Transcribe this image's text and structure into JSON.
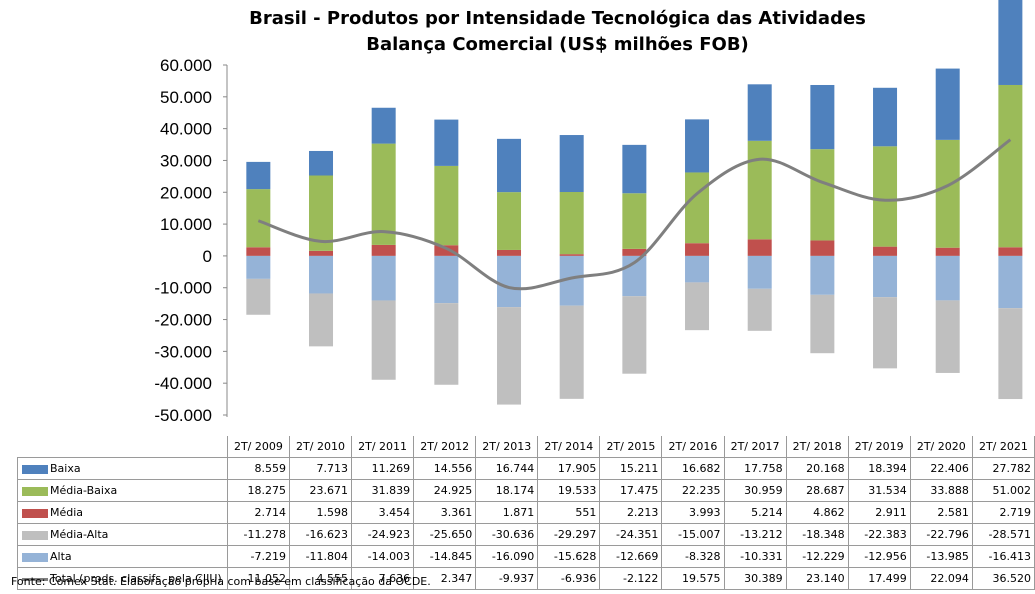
{
  "chart_data": {
    "type": "bar",
    "title": "Brasil - Produtos por Intensidade Tecnológica das Atividades",
    "subtitle": "Balança Comercial (US$ milhões FOB)",
    "categories": [
      "2T/ 2009",
      "2T/ 2010",
      "2T/ 2011",
      "2T/ 2012",
      "2T/ 2013",
      "2T/ 2014",
      "2T/ 2015",
      "2T/ 2016",
      "2T/ 2017",
      "2T/ 2018",
      "2T/ 2019",
      "2T/ 2020",
      "2T/ 2021"
    ],
    "ylim": [
      -50000,
      60000
    ],
    "yticks": [
      "60.000",
      "50.000",
      "40.000",
      "30.000",
      "20.000",
      "10.000",
      "0",
      "-10.000",
      "-20.000",
      "-30.000",
      "-40.000",
      "-50.000"
    ],
    "series": [
      {
        "name": "Baixa",
        "kind": "bar",
        "color": "#4f81bd",
        "values": [
          8559,
          7713,
          11269,
          14556,
          16744,
          17905,
          15211,
          16682,
          17758,
          20168,
          18394,
          22406,
          27782
        ],
        "labels": [
          "8.559",
          "7.713",
          "11.269",
          "14.556",
          "16.744",
          "17.905",
          "15.211",
          "16.682",
          "17.758",
          "20.168",
          "18.394",
          "22.406",
          "27.782"
        ]
      },
      {
        "name": "Média-Baixa",
        "kind": "bar",
        "color": "#9bbb59",
        "values": [
          18275,
          23671,
          31839,
          24925,
          18174,
          19533,
          17475,
          22235,
          30959,
          28687,
          31534,
          33888,
          51002
        ],
        "labels": [
          "18.275",
          "23.671",
          "31.839",
          "24.925",
          "18.174",
          "19.533",
          "17.475",
          "22.235",
          "30.959",
          "28.687",
          "31.534",
          "33.888",
          "51.002"
        ]
      },
      {
        "name": "Média",
        "kind": "bar",
        "color": "#c0504d",
        "values": [
          2714,
          1598,
          3454,
          3361,
          1871,
          551,
          2213,
          3993,
          5214,
          4862,
          2911,
          2581,
          2719
        ],
        "labels": [
          "2.714",
          "1.598",
          "3.454",
          "3.361",
          "1.871",
          "551",
          "2.213",
          "3.993",
          "5.214",
          "4.862",
          "2.911",
          "2.581",
          "2.719"
        ]
      },
      {
        "name": "Média-Alta",
        "kind": "bar",
        "color": "#bfbfbf",
        "values": [
          -11278,
          -16623,
          -24923,
          -25650,
          -30636,
          -29297,
          -24351,
          -15007,
          -13212,
          -18348,
          -22383,
          -22796,
          -28571
        ],
        "labels": [
          "-11.278",
          "-16.623",
          "-24.923",
          "-25.650",
          "-30.636",
          "-29.297",
          "-24.351",
          "-15.007",
          "-13.212",
          "-18.348",
          "-22.383",
          "-22.796",
          "-28.571"
        ]
      },
      {
        "name": "Alta",
        "kind": "bar",
        "color": "#95b3d7",
        "values": [
          -7219,
          -11804,
          -14003,
          -14845,
          -16090,
          -15628,
          -12669,
          -8328,
          -10331,
          -12229,
          -12956,
          -13985,
          -16413
        ],
        "labels": [
          "-7.219",
          "-11.804",
          "-14.003",
          "-14.845",
          "-16.090",
          "-15.628",
          "-12.669",
          "-8.328",
          "-10.331",
          "-12.229",
          "-12.956",
          "-13.985",
          "-16.413"
        ]
      },
      {
        "name": "Total (prods. classifs. pela CIIU)",
        "kind": "line",
        "color": "#7f7f7f",
        "values": [
          11052,
          4555,
          7636,
          2347,
          -9937,
          -6936,
          -2122,
          19575,
          30389,
          23140,
          17499,
          22094,
          36520
        ],
        "labels": [
          "11.052",
          "4.555",
          "7.636",
          "2.347",
          "-9.937",
          "-6.936",
          "-2.122",
          "19.575",
          "30.389",
          "23.140",
          "17.499",
          "22.094",
          "36.520"
        ]
      }
    ],
    "grid": false,
    "legend": "data-table"
  },
  "footer": {
    "source": "Fonte: Comex Stat. Elaboração própria com base em classificação da OCDE."
  }
}
